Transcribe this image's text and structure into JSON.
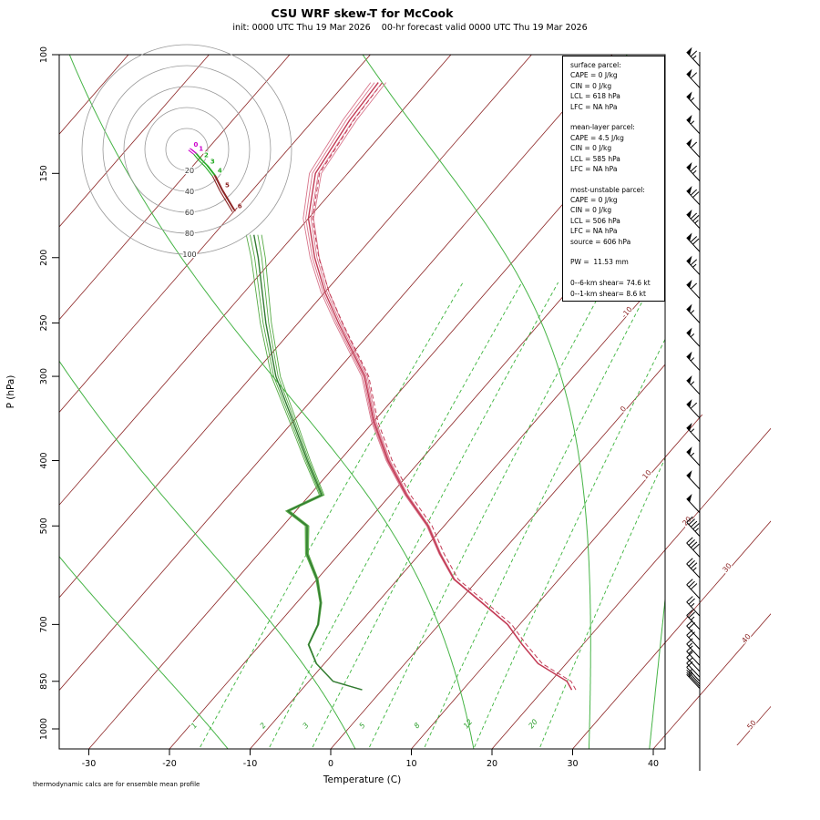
{
  "parcel_box": {
    "lines": [
      "surface parcel:",
      "CAPE = 0 J/kg",
      "CIN = 0 J/kg",
      "LCL = 618 hPa",
      "LFC = NA hPa",
      "",
      "mean-layer parcel:",
      "CAPE = 4.5 J/kg",
      "CIN = 0 J/kg",
      "LCL = 585 hPa",
      "LFC = NA hPa",
      "",
      "most-unstable parcel:",
      "CAPE = 0 J/kg",
      "CIN = 0 J/kg",
      "LCL = 506 hPa",
      "LFC = NA hPa",
      "source = 606 hPa",
      "",
      "PW =  11.53 mm",
      "",
      "0--6-km shear= 74.6 kt",
      "0--1-km shear= 8.6 kt"
    ]
  },
  "chart_data": {
    "type": "skewt-logp-sounding",
    "title": "CSU WRF skew-T for McCook",
    "subtitle": "init: 0000 UTC Thu 19 Mar 2026    00-hr forecast valid 0000 UTC Thu 19 Mar 2026",
    "xlabel": "Temperature (C)",
    "ylabel": "P (hPa)",
    "footnote": "thermodynamic calcs are for ensemble mean profile",
    "pressure_range_hPa": [
      100,
      1070
    ],
    "pressure_ticks": [
      100,
      150,
      200,
      250,
      300,
      400,
      500,
      700,
      850,
      1000
    ],
    "temperature_ticks_c": [
      -30,
      -20,
      -10,
      0,
      10,
      20,
      30,
      40
    ],
    "isotherm_step_c": 10,
    "isotherm_labels_c": [
      -10,
      0,
      10,
      20,
      30,
      40,
      50
    ],
    "mixing_ratio_labels_gkg": [
      1,
      2,
      3,
      5,
      8,
      12,
      20
    ],
    "moist_adiabat_surface_temps_c": [
      -12.8,
      3,
      17.7,
      32,
      39.5
    ],
    "temperature_profile": {
      "pressure_hPa": [
        875,
        850,
        800,
        750,
        700,
        650,
        600,
        550,
        500,
        450,
        400,
        350,
        300,
        250,
        225,
        200,
        175,
        150,
        125,
        110
      ],
      "temp_c": [
        23.5,
        22,
        16.5,
        12.5,
        8.5,
        3,
        -3,
        -7.5,
        -12,
        -18,
        -24,
        -30,
        -36,
        -45,
        -50,
        -55,
        -60,
        -64,
        -65.5,
        -66
      ]
    },
    "dewpoint_profile": {
      "pressure_hPa": [
        875,
        850,
        800,
        750,
        700,
        650,
        600,
        550,
        500,
        475,
        450,
        400,
        350,
        300,
        250,
        200,
        185
      ],
      "dewpoint_c": [
        -2.5,
        -7,
        -11,
        -14,
        -15,
        -17,
        -20,
        -24,
        -27,
        -31,
        -28.5,
        -34,
        -40,
        -47,
        -54,
        -62,
        -65
      ]
    },
    "wind_barbs_kt": [
      {
        "p": 104,
        "kt": 65
      },
      {
        "p": 112,
        "kt": 60
      },
      {
        "p": 121,
        "kt": 55
      },
      {
        "p": 131,
        "kt": 55
      },
      {
        "p": 142,
        "kt": 60
      },
      {
        "p": 154,
        "kt": 65
      },
      {
        "p": 167,
        "kt": 70
      },
      {
        "p": 181,
        "kt": 75
      },
      {
        "p": 196,
        "kt": 70
      },
      {
        "p": 212,
        "kt": 65
      },
      {
        "p": 230,
        "kt": 60
      },
      {
        "p": 250,
        "kt": 55
      },
      {
        "p": 271,
        "kt": 55
      },
      {
        "p": 294,
        "kt": 55
      },
      {
        "p": 319,
        "kt": 55
      },
      {
        "p": 346,
        "kt": 60
      },
      {
        "p": 375,
        "kt": 55
      },
      {
        "p": 407,
        "kt": 55
      },
      {
        "p": 441,
        "kt": 50
      },
      {
        "p": 478,
        "kt": 50
      },
      {
        "p": 518,
        "kt": 45
      },
      {
        "p": 556,
        "kt": 40
      },
      {
        "p": 597,
        "kt": 35
      },
      {
        "p": 641,
        "kt": 30
      },
      {
        "p": 680,
        "kt": 28
      },
      {
        "p": 712,
        "kt": 25
      },
      {
        "p": 738,
        "kt": 22
      },
      {
        "p": 762,
        "kt": 20
      },
      {
        "p": 785,
        "kt": 18
      },
      {
        "p": 805,
        "kt": 15
      },
      {
        "p": 822,
        "kt": 12
      },
      {
        "p": 838,
        "kt": 10
      },
      {
        "p": 850,
        "kt": 10
      },
      {
        "p": 858,
        "kt": 8
      },
      {
        "p": 865,
        "kt": 7
      },
      {
        "p": 871,
        "kt": 5
      }
    ],
    "hodograph": {
      "ring_labels_kt": [
        20,
        40,
        60,
        80,
        100
      ],
      "points": [
        {
          "km": 0,
          "u": 3,
          "v": 1
        },
        {
          "km": 1,
          "u": 8,
          "v": -3
        },
        {
          "km": 2,
          "u": 13,
          "v": -9
        },
        {
          "km": 3,
          "u": 19,
          "v": -15
        },
        {
          "km": 4,
          "u": 26,
          "v": -24
        },
        {
          "km": 5,
          "u": 33,
          "v": -38
        },
        {
          "km": 6,
          "u": 45,
          "v": -58
        }
      ]
    },
    "colors": {
      "isotherm": "#8b2323",
      "temperature": "#c23b55",
      "temperature_member": "#d8758b",
      "dewpoint": "#337a33",
      "dewpoint_member": "#55aa44",
      "mixing_ratio": "#3cb43c",
      "moist_adiabat": "#46b446",
      "hodo_low": "#cc00cc",
      "hodo_mid": "#22aa22",
      "hodo_high": "#8b2323",
      "barb": "#000000"
    }
  }
}
